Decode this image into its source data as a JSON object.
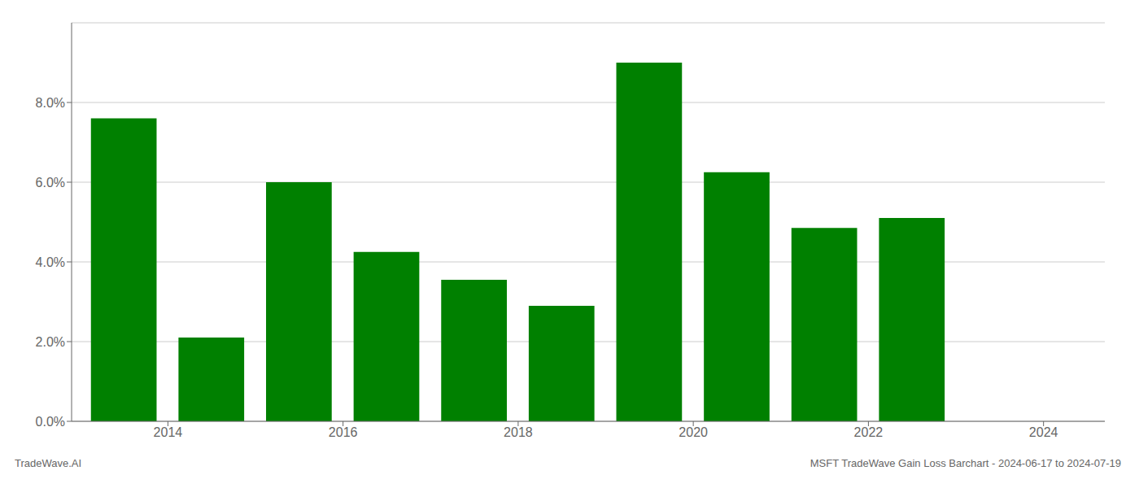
{
  "chart_data": {
    "type": "bar",
    "x": [
      2013,
      2014,
      2015,
      2016,
      2017,
      2018,
      2019,
      2020,
      2021,
      2022,
      2023
    ],
    "values": [
      0.076,
      0.021,
      0.06,
      0.0425,
      0.0355,
      0.029,
      0.09,
      0.0625,
      0.0485,
      0.051,
      0.0
    ],
    "color": "#008000",
    "xlim": [
      2012.4,
      2024.2
    ],
    "xticks": [
      {
        "value": 2013.5,
        "label": "2014"
      },
      {
        "value": 2015.5,
        "label": "2016"
      },
      {
        "value": 2017.5,
        "label": "2018"
      },
      {
        "value": 2019.5,
        "label": "2020"
      },
      {
        "value": 2021.5,
        "label": "2022"
      },
      {
        "value": 2023.5,
        "label": "2024"
      }
    ],
    "ylim": [
      0,
      0.1
    ],
    "yticks": [
      {
        "value": 0.0,
        "label": "0.0%"
      },
      {
        "value": 0.02,
        "label": "2.0%"
      },
      {
        "value": 0.04,
        "label": "4.0%"
      },
      {
        "value": 0.06,
        "label": "6.0%"
      },
      {
        "value": 0.08,
        "label": "8.0%"
      }
    ],
    "grid": true,
    "annotations": [
      "TradeWave.AI",
      "MSFT TradeWave Gain Loss Barchart - 2024-06-17 to 2024-07-19"
    ]
  }
}
